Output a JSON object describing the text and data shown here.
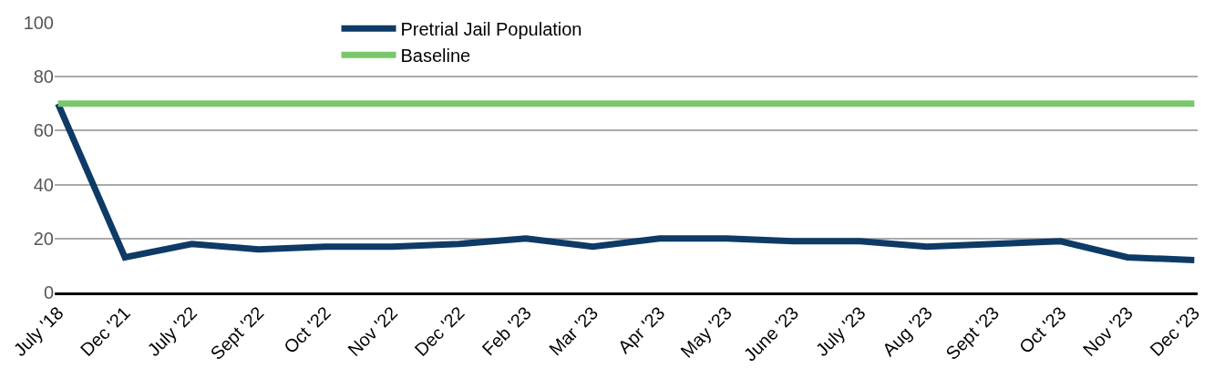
{
  "chart_data": {
    "type": "line",
    "categories": [
      "July '18",
      "Dec '21",
      "July '22",
      "Sept '22",
      "Oct '22",
      "Nov '22",
      "Dec '22",
      "Feb '23",
      "Mar '23",
      "Apr '23",
      "May '23",
      "June '23",
      "July '23",
      "Aug '23",
      "Sept '23",
      "Oct '23",
      "Nov '23",
      "Dec '23"
    ],
    "series": [
      {
        "name": "Pretrial Jail Population",
        "color": "#0e3a66",
        "values": [
          70,
          13,
          18,
          16,
          17,
          17,
          18,
          20,
          17,
          20,
          20,
          19,
          19,
          17,
          18,
          19,
          13,
          12
        ]
      },
      {
        "name": "Baseline",
        "color": "#7ac66b",
        "values": [
          70,
          70,
          70,
          70,
          70,
          70,
          70,
          70,
          70,
          70,
          70,
          70,
          70,
          70,
          70,
          70,
          70,
          70
        ]
      }
    ],
    "ylim": [
      0,
      100
    ],
    "yticks": [
      0,
      20,
      40,
      60,
      80,
      100
    ],
    "grid": "y",
    "legend": "top",
    "marker": "none",
    "line_style": "solid"
  }
}
